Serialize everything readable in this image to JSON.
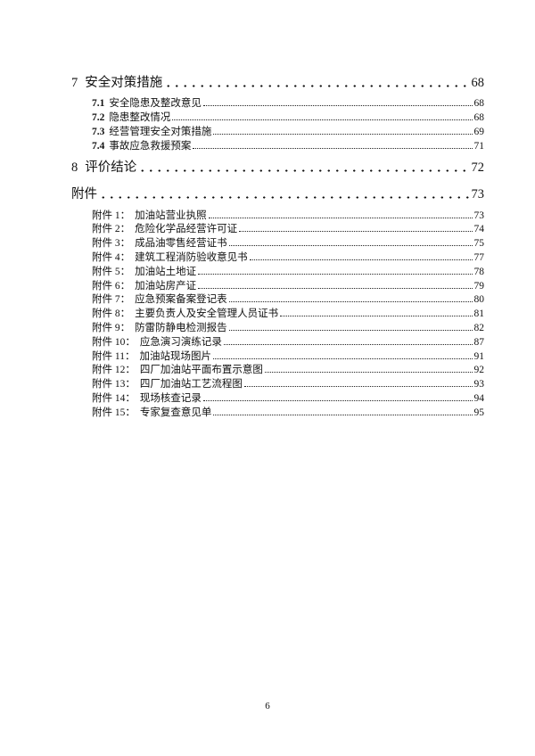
{
  "toc": {
    "section7": {
      "number": "7",
      "title": "安全对策措施",
      "page": "68"
    },
    "section7_items": [
      {
        "number": "7.1",
        "title": "安全隐患及整改意见",
        "page": "68"
      },
      {
        "number": "7.2",
        "title": "隐患整改情况",
        "page": "68"
      },
      {
        "number": "7.3",
        "title": "经营管理安全对策措施",
        "page": "69"
      },
      {
        "number": "7.4",
        "title": "事故应急救援预案",
        "page": "71"
      }
    ],
    "section8": {
      "number": "8",
      "title": "评价结论",
      "page": "72"
    },
    "appendix": {
      "title": "附件",
      "page": "73"
    },
    "appendix_items": [
      {
        "label": "附件 1：",
        "title": "加油站营业执照",
        "page": "73"
      },
      {
        "label": "附件 2：",
        "title": "危险化学品经营许可证",
        "page": "74"
      },
      {
        "label": "附件 3：",
        "title": "成品油零售经营证书",
        "page": "75"
      },
      {
        "label": "附件 4：",
        "title": "建筑工程消防验收意见书",
        "page": "77"
      },
      {
        "label": "附件 5：",
        "title": "加油站土地证",
        "page": "78"
      },
      {
        "label": "附件 6：",
        "title": "加油站房产证",
        "page": "79"
      },
      {
        "label": "附件 7：",
        "title": "应急预案备案登记表",
        "page": "80"
      },
      {
        "label": "附件 8：",
        "title": "主要负责人及安全管理人员证书",
        "page": "81"
      },
      {
        "label": "附件 9：",
        "title": "防雷防静电检测报告",
        "page": "82"
      },
      {
        "label": "附件 10：",
        "title": "应急演习演练记录",
        "page": "87"
      },
      {
        "label": "附件 11：",
        "title": "加油站现场图片",
        "page": "91"
      },
      {
        "label": "附件 12：",
        "title": "四厂加油站平面布置示意图",
        "page": "92"
      },
      {
        "label": "附件 13：",
        "title": "四厂加油站工艺流程图",
        "page": "93"
      },
      {
        "label": "附件 14：",
        "title": "现场核查记录",
        "page": "94"
      },
      {
        "label": "附件 15：",
        "title": "专家复查意见单",
        "page": "95"
      }
    ]
  },
  "footer": {
    "page_number": "6"
  }
}
